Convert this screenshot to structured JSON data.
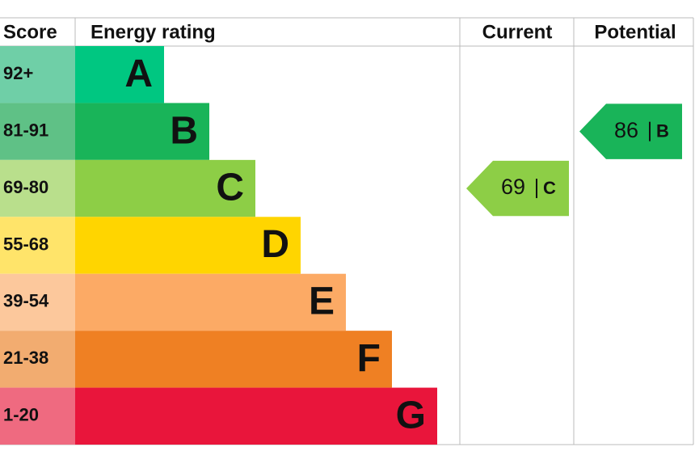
{
  "headers": {
    "score": "Score",
    "rating": "Energy rating",
    "current": "Current",
    "potential": "Potential"
  },
  "rows": [
    {
      "score": "92+",
      "band": "A",
      "color": "#00c781",
      "light": "#6fcfa7"
    },
    {
      "score": "81-91",
      "band": "B",
      "color": "#19b459",
      "light": "#5fc186"
    },
    {
      "score": "69-80",
      "band": "C",
      "color": "#8dce46",
      "light": "#b9df8c"
    },
    {
      "score": "55-68",
      "band": "D",
      "color": "#ffd500",
      "light": "#ffe46a"
    },
    {
      "score": "39-54",
      "band": "E",
      "color": "#fcaa65",
      "light": "#fcc89c"
    },
    {
      "score": "21-38",
      "band": "F",
      "color": "#ef8023",
      "light": "#f2ac70"
    },
    {
      "score": "1-20",
      "band": "G",
      "color": "#e9153b",
      "light": "#ef6a80"
    }
  ],
  "current": {
    "value": 69,
    "band": "C"
  },
  "potential": {
    "value": 86,
    "band": "B"
  }
}
